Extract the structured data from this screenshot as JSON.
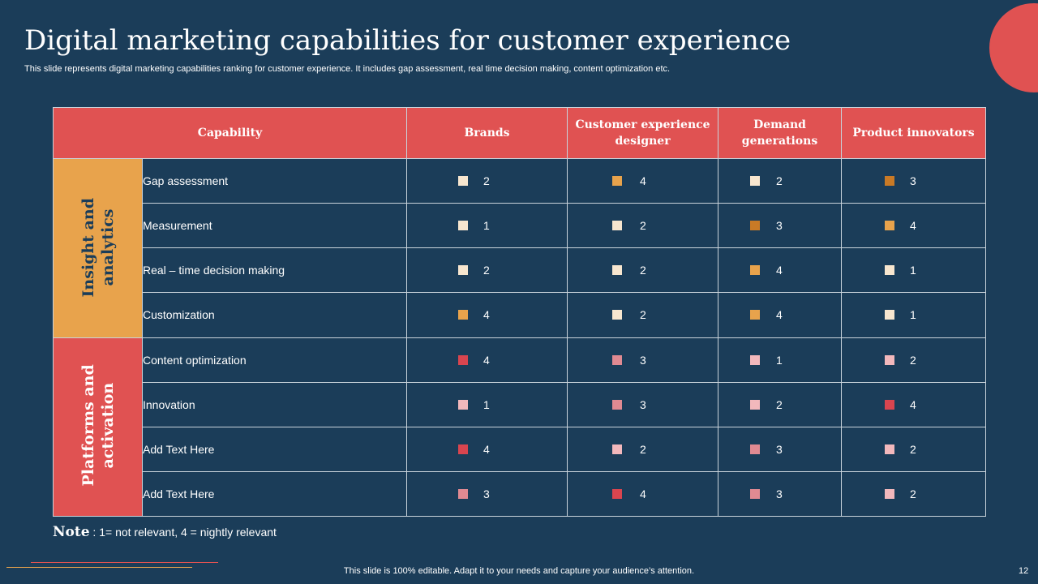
{
  "title": "Digital marketing capabilities for customer experience",
  "subtitle": "This slide represents digital marketing capabilities ranking for customer experience. It includes gap assessment, real time decision making, content optimization etc.",
  "table": {
    "headers": [
      "Capability",
      "Brands",
      "Customer experience designer",
      "Demand generations",
      "Product innovators"
    ],
    "groups": [
      {
        "label": "Insight and analytics",
        "rows": [
          {
            "name": "Gap assessment",
            "scores": [
              "2",
              "4",
              "2",
              "3"
            ]
          },
          {
            "name": "Measurement",
            "scores": [
              "1",
              "2",
              "3",
              "4"
            ]
          },
          {
            "name": "Real – time decision making",
            "scores": [
              "2",
              "2",
              "4",
              "1"
            ]
          },
          {
            "name": "Customization",
            "scores": [
              "4",
              "2",
              "4",
              "1"
            ]
          }
        ]
      },
      {
        "label": "Platforms and activation",
        "rows": [
          {
            "name": "Content optimization",
            "scores": [
              "4",
              "3",
              "1",
              "2"
            ]
          },
          {
            "name": "Innovation",
            "scores": [
              "1",
              "3",
              "2",
              "4"
            ]
          },
          {
            "name": "Add Text Here",
            "scores": [
              "4",
              "2",
              "3",
              "2"
            ]
          },
          {
            "name": "Add Text Here",
            "scores": [
              "3",
              "4",
              "3",
              "2"
            ]
          }
        ]
      }
    ]
  },
  "legend_colors": {
    "insight": {
      "1": "#f7e6cf",
      "2": "#f7e6cf",
      "3": "#c97a26",
      "4": "#e8a34c"
    },
    "platforms": {
      "1": "#f2b8bc",
      "2": "#f2b8bc",
      "3": "#e08a92",
      "4": "#d9454f"
    }
  },
  "note": {
    "label": "Note",
    "text": " : 1= not relevant,  4 = nightly relevant"
  },
  "footer": "This slide is 100% editable. Adapt it to your needs and capture your audience’s attention.",
  "page_number": "12",
  "colors": {
    "background": "#1b3d59",
    "accent_red": "#e05252",
    "accent_orange": "#e8a34c"
  }
}
